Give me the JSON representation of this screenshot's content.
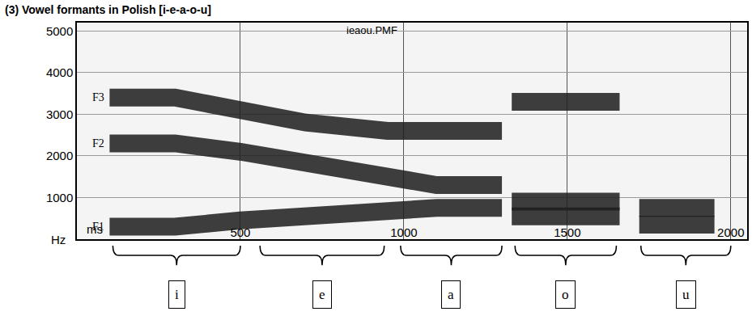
{
  "chart_data": {
    "type": "line",
    "title": "(3) Vowel formants in Polish [i-e-a-o-u]",
    "subtitle": "ieaou.PMF",
    "x_label": "ms",
    "y_label": "Hz",
    "x": [
      100,
      300,
      500,
      700,
      950,
      1100,
      1300,
      1315,
      1330,
      1500,
      1660,
      1690,
      1720,
      1850,
      1950
    ],
    "series": [
      {
        "name": "F1",
        "color": "#1e1e1e",
        "values": [
          300,
          300,
          450,
          550,
          700,
          750,
          750,
          null,
          550,
          550,
          550,
          null,
          350,
          350,
          350
        ]
      },
      {
        "name": "F2",
        "color": "#1e1e1e",
        "values": [
          2300,
          2300,
          2100,
          1800,
          1500,
          1300,
          1300,
          null,
          900,
          900,
          900,
          null,
          750,
          750,
          750
        ]
      },
      {
        "name": "F3",
        "color": "#1e1e1e",
        "values": [
          3400,
          3400,
          3100,
          2800,
          2600,
          2600,
          2600,
          null,
          3300,
          3300,
          3300,
          null,
          null,
          null,
          null
        ]
      }
    ],
    "xlim": [
      0,
      2050
    ],
    "ylim": [
      0,
      5200
    ],
    "xticks": [
      500,
      1000,
      1500,
      2000
    ],
    "yticks": [
      1000,
      2000,
      3000,
      4000,
      5000
    ],
    "grid": true,
    "annotations": [
      {
        "text": "i",
        "start": 110,
        "end": 500
      },
      {
        "text": "e",
        "start": 560,
        "end": 940
      },
      {
        "text": "a",
        "start": 990,
        "end": 1300
      },
      {
        "text": "o",
        "start": 1340,
        "end": 1650
      },
      {
        "text": "u",
        "start": 1725,
        "end": 2000
      }
    ]
  }
}
